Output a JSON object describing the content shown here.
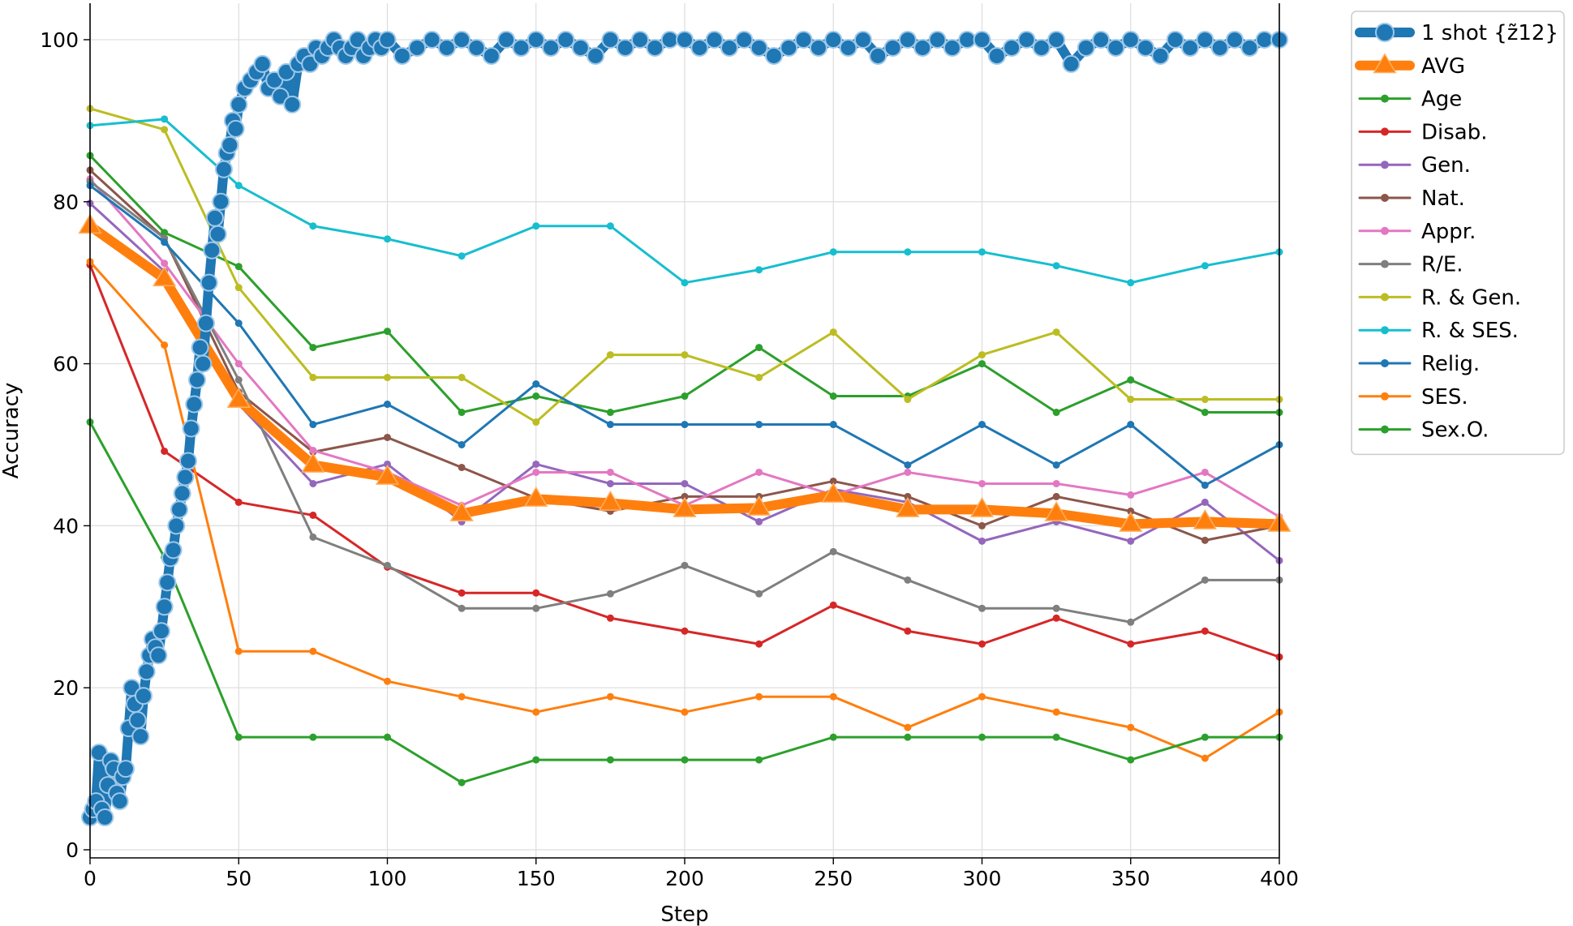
{
  "chart_data": {
    "type": "line",
    "xlabel": "Step",
    "ylabel": "Accuracy",
    "xlim": [
      0,
      400
    ],
    "ylim": [
      -1,
      104.5
    ],
    "xticks": [
      0,
      50,
      100,
      150,
      200,
      250,
      300,
      350,
      400
    ],
    "yticks": [
      0,
      20,
      40,
      60,
      80,
      100
    ],
    "grid": true,
    "legend_position": "outside-right-top",
    "series": [
      {
        "name": "1 shot {z̃12}",
        "color": "#1f77b4",
        "marker": "circle-large",
        "x": [
          0,
          1,
          2,
          3,
          4,
          5,
          6,
          7,
          8,
          9,
          10,
          11,
          12,
          13,
          14,
          15,
          16,
          17,
          18,
          19,
          20,
          21,
          22,
          23,
          24,
          25,
          26,
          27,
          28,
          29,
          30,
          31,
          32,
          33,
          34,
          35,
          36,
          37,
          38,
          39,
          40,
          41,
          42,
          43,
          44,
          45,
          46,
          47,
          48,
          49,
          50,
          52,
          54,
          56,
          58,
          60,
          62,
          64,
          66,
          68,
          70,
          72,
          74,
          76,
          78,
          80,
          82,
          84,
          86,
          88,
          90,
          92,
          94,
          96,
          98,
          100,
          105,
          110,
          115,
          120,
          125,
          130,
          135,
          140,
          145,
          150,
          155,
          160,
          165,
          170,
          175,
          180,
          185,
          190,
          195,
          200,
          205,
          210,
          215,
          220,
          225,
          230,
          235,
          240,
          245,
          250,
          255,
          260,
          265,
          270,
          275,
          280,
          285,
          290,
          295,
          300,
          305,
          310,
          315,
          320,
          325,
          330,
          335,
          340,
          345,
          350,
          355,
          360,
          365,
          370,
          375,
          380,
          385,
          390,
          395,
          400
        ],
        "y": [
          4,
          5,
          6,
          12,
          5,
          4,
          8,
          11,
          10,
          7,
          6,
          9,
          10,
          15,
          20,
          18,
          16,
          14,
          19,
          22,
          24,
          26,
          25,
          24,
          27,
          30,
          33,
          36,
          37,
          40,
          42,
          44,
          46,
          48,
          52,
          55,
          58,
          62,
          60,
          65,
          70,
          74,
          78,
          76,
          80,
          84,
          86,
          87,
          90,
          89,
          92,
          94,
          95,
          96,
          97,
          94,
          95,
          93,
          96,
          92,
          97,
          98,
          97,
          99,
          98,
          99,
          100,
          99,
          98,
          99,
          100,
          98,
          99,
          100,
          99,
          100,
          98,
          99,
          100,
          99,
          100,
          99,
          98,
          100,
          99,
          100,
          99,
          100,
          99,
          98,
          100,
          99,
          100,
          99,
          100,
          100,
          99,
          100,
          99,
          100,
          99,
          98,
          99,
          100,
          99,
          100,
          99,
          100,
          98,
          99,
          100,
          99,
          100,
          99,
          100,
          100,
          98,
          99,
          100,
          99,
          100,
          97,
          99,
          100,
          99,
          100,
          99,
          98,
          100,
          99,
          100,
          99,
          100,
          99,
          100,
          100
        ]
      },
      {
        "name": "AVG",
        "color": "#ff7f0e",
        "marker": "triangle",
        "x": [
          0,
          25,
          50,
          75,
          100,
          125,
          150,
          175,
          200,
          225,
          250,
          275,
          300,
          325,
          350,
          375,
          400
        ],
        "y": [
          77,
          70.5,
          55.5,
          47.5,
          46,
          41.5,
          43.3,
          42.8,
          42,
          42.2,
          43.8,
          42,
          42,
          41.5,
          40.2,
          40.5,
          40.2
        ]
      },
      {
        "name": "Age",
        "color": "#2ca02c",
        "marker": "dot",
        "x": [
          0,
          25,
          50,
          75,
          100,
          125,
          150,
          175,
          200,
          225,
          250,
          275,
          300,
          325,
          350,
          375,
          400
        ],
        "y": [
          85.7,
          76.2,
          72,
          62,
          64,
          54,
          56,
          54,
          56,
          62,
          56,
          56,
          60,
          54,
          58,
          54,
          54
        ]
      },
      {
        "name": "Disab.",
        "color": "#d62728",
        "marker": "dot",
        "x": [
          0,
          25,
          50,
          75,
          100,
          125,
          150,
          175,
          200,
          225,
          250,
          275,
          300,
          325,
          350,
          375,
          400
        ],
        "y": [
          72.2,
          49.2,
          42.9,
          41.3,
          34.9,
          31.7,
          31.7,
          28.6,
          27,
          25.4,
          30.2,
          27,
          25.4,
          28.6,
          25.4,
          27,
          23.8
        ]
      },
      {
        "name": "Gen.",
        "color": "#9467bd",
        "marker": "dot",
        "x": [
          0,
          25,
          50,
          75,
          100,
          125,
          150,
          175,
          200,
          225,
          250,
          275,
          300,
          325,
          350,
          375,
          400
        ],
        "y": [
          79.8,
          71.4,
          55,
          45.2,
          47.6,
          40.5,
          47.6,
          45.2,
          45.2,
          40.5,
          44.5,
          42.9,
          38.1,
          40.5,
          38.1,
          42.9,
          35.7
        ]
      },
      {
        "name": "Nat.",
        "color": "#8c564b",
        "marker": "dot",
        "x": [
          0,
          25,
          50,
          75,
          100,
          125,
          150,
          175,
          200,
          225,
          250,
          275,
          300,
          325,
          350,
          375,
          400
        ],
        "y": [
          83.9,
          75.5,
          56.5,
          49.1,
          50.9,
          47.2,
          43.4,
          41.8,
          43.6,
          43.6,
          45.5,
          43.6,
          40,
          43.6,
          41.8,
          38.2,
          40
        ]
      },
      {
        "name": "Appr.",
        "color": "#e377c2",
        "marker": "dot",
        "x": [
          0,
          25,
          50,
          75,
          100,
          125,
          150,
          175,
          200,
          225,
          250,
          275,
          300,
          325,
          350,
          375,
          400
        ],
        "y": [
          82.8,
          72.4,
          60,
          49.3,
          46.6,
          42.5,
          46.6,
          46.6,
          42.5,
          46.6,
          43.8,
          46.6,
          45.2,
          45.2,
          43.8,
          46.6,
          41.1
        ]
      },
      {
        "name": "R/E.",
        "color": "#7f7f7f",
        "marker": "dot",
        "x": [
          0,
          25,
          50,
          75,
          100,
          125,
          150,
          175,
          200,
          225,
          250,
          275,
          300,
          325,
          350,
          375,
          400
        ],
        "y": [
          82.5,
          75.5,
          58,
          38.6,
          35.1,
          29.8,
          29.8,
          31.6,
          35.1,
          31.6,
          36.8,
          33.3,
          29.8,
          29.8,
          28.1,
          33.3,
          33.3
        ]
      },
      {
        "name": "R. & Gen.",
        "color": "#bcbd22",
        "marker": "dot",
        "x": [
          0,
          25,
          50,
          75,
          100,
          125,
          150,
          175,
          200,
          225,
          250,
          275,
          300,
          325,
          350,
          375,
          400
        ],
        "y": [
          91.5,
          88.9,
          69.4,
          58.3,
          58.3,
          58.3,
          52.8,
          61.1,
          61.1,
          58.3,
          63.9,
          55.6,
          61.1,
          63.9,
          55.6,
          55.6,
          55.6
        ]
      },
      {
        "name": "R. & SES.",
        "color": "#17becf",
        "marker": "dot",
        "x": [
          0,
          25,
          50,
          75,
          100,
          125,
          150,
          175,
          200,
          225,
          250,
          275,
          300,
          325,
          350,
          375,
          400
        ],
        "y": [
          89.4,
          90.2,
          82,
          77,
          75.4,
          73.3,
          77,
          77,
          70,
          71.6,
          73.8,
          73.8,
          73.8,
          72.1,
          70,
          72.1,
          73.8
        ]
      },
      {
        "name": "Relig.",
        "color": "#1f77b4",
        "marker": "dot",
        "x": [
          0,
          25,
          50,
          75,
          100,
          125,
          150,
          175,
          200,
          225,
          250,
          275,
          300,
          325,
          350,
          375,
          400
        ],
        "y": [
          82,
          75,
          65,
          52.5,
          55,
          50,
          57.5,
          52.5,
          52.5,
          52.5,
          52.5,
          47.5,
          52.5,
          47.5,
          52.5,
          45,
          50
        ]
      },
      {
        "name": "SES.",
        "color": "#ff7f0e",
        "marker": "dot",
        "x": [
          0,
          25,
          50,
          75,
          100,
          125,
          150,
          175,
          200,
          225,
          250,
          275,
          300,
          325,
          350,
          375,
          400
        ],
        "y": [
          72.6,
          62.3,
          24.5,
          24.5,
          20.8,
          18.9,
          17,
          18.9,
          17,
          18.9,
          18.9,
          15.1,
          18.9,
          17,
          15.1,
          11.3,
          17
        ]
      },
      {
        "name": "Sex.O.",
        "color": "#2ca02c",
        "marker": "dot",
        "x": [
          0,
          25,
          50,
          75,
          100,
          125,
          150,
          175,
          200,
          225,
          250,
          275,
          300,
          325,
          350,
          375,
          400
        ],
        "y": [
          52.8,
          36.1,
          13.9,
          13.9,
          13.9,
          8.3,
          11.1,
          11.1,
          11.1,
          11.1,
          13.9,
          13.9,
          13.9,
          13.9,
          11.1,
          13.9,
          13.9
        ]
      }
    ]
  }
}
